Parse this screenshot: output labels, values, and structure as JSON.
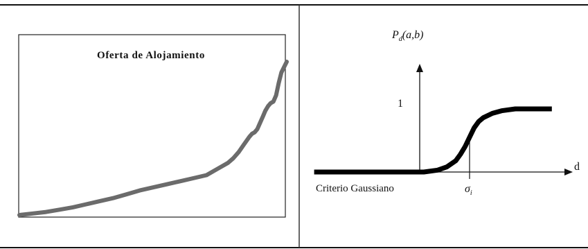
{
  "chart_data": [
    {
      "type": "line",
      "title": "Oferta de Alojamiento",
      "xlabel": "",
      "ylabel": "",
      "grid": false,
      "legend": "none",
      "color": "#6b6b6b",
      "x": [
        0,
        0.05,
        0.1,
        0.15,
        0.2,
        0.25,
        0.3,
        0.35,
        0.4,
        0.45,
        0.5,
        0.55,
        0.6,
        0.65,
        0.7,
        0.74,
        0.78,
        0.8,
        0.82,
        0.84,
        0.86,
        0.87,
        0.88,
        0.89,
        0.9,
        0.91,
        0.92,
        0.93,
        0.94,
        0.95,
        0.96,
        0.97,
        0.98,
        1.0
      ],
      "y": [
        0.0,
        0.01,
        0.02,
        0.035,
        0.05,
        0.07,
        0.09,
        0.11,
        0.135,
        0.16,
        0.18,
        0.2,
        0.22,
        0.24,
        0.26,
        0.3,
        0.34,
        0.37,
        0.41,
        0.46,
        0.51,
        0.53,
        0.54,
        0.56,
        0.6,
        0.64,
        0.68,
        0.71,
        0.73,
        0.74,
        0.78,
        0.86,
        0.93,
        1.0
      ]
    },
    {
      "type": "line",
      "title": "",
      "ylabel_main": "P",
      "ylabel_sub": "d",
      "ylabel_args": "(a,b)",
      "xlabel": "d",
      "y_tick_label": "1",
      "x_marker_label": "σ",
      "x_marker_sub": "i",
      "caption": "Criterio Gaussiano",
      "grid": false,
      "legend": "none",
      "color": "#000000",
      "x": [
        -3.4,
        -1.0,
        -0.7,
        -0.5,
        -0.3,
        -0.2,
        -0.1,
        0.0,
        0.1,
        0.2,
        0.3,
        0.5,
        0.7,
        1.0,
        1.3,
        1.8
      ],
      "y": [
        0.0,
        0.0,
        0.03,
        0.08,
        0.18,
        0.28,
        0.4,
        0.55,
        0.7,
        0.8,
        0.86,
        0.93,
        0.97,
        1.0,
        1.0,
        1.0
      ]
    }
  ]
}
